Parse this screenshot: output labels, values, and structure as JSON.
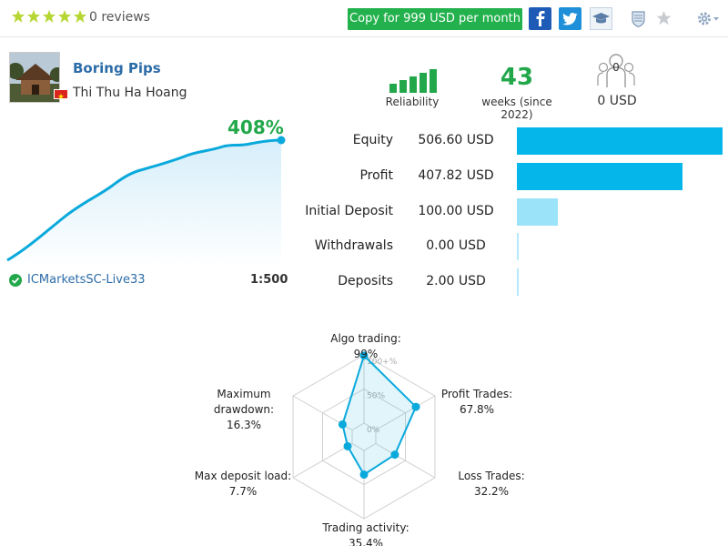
{
  "header": {
    "reviews": "0 reviews",
    "copy_label": "Copy for 999 USD per month",
    "colors": {
      "star": "#b6d633",
      "copy": "#22b14c",
      "facebook": "#1e5bb6",
      "twitter": "#1e8fd8"
    }
  },
  "profile": {
    "signal_name": "Boring Pips",
    "author": "Thi Thu Ha Hoang",
    "reliability_label": "Reliability",
    "weeks_value": "43",
    "weeks_label": "weeks (since 2022)",
    "subscribers_count": "0",
    "subscribers_usd": "0 USD"
  },
  "growth": {
    "percent": "408%",
    "server": "ICMarketsSC-Live33",
    "leverage": "1:500",
    "color": "#0aa9dc"
  },
  "stats": [
    {
      "label": "Equity",
      "value": "506.60 USD",
      "share": 1.0
    },
    {
      "label": "Profit",
      "value": "407.82 USD",
      "share": 0.805
    },
    {
      "label": "Initial Deposit",
      "value": "100.00 USD",
      "share": 0.197
    },
    {
      "label": "Withdrawals",
      "value": "0.00 USD",
      "share": 0.0
    },
    {
      "label": "Deposits",
      "value": "2.00 USD",
      "share": 0.004
    }
  ],
  "chart_data": {
    "type": "radar",
    "axes": [
      "Algo trading",
      "Profit Trades",
      "Loss Trades",
      "Trading activity",
      "Max deposit load",
      "Maximum drawdown"
    ],
    "values": [
      99,
      67.8,
      32.2,
      35.4,
      7.7,
      16.3
    ],
    "ticks": [
      "100+%",
      "50%",
      "0%"
    ],
    "labels": {
      "algo": "Algo trading: 99%",
      "profit_trades_1": "Profit Trades:",
      "profit_trades_2": "67.8%",
      "loss_trades": "Loss Trades: 32.2%",
      "activity": "Trading activity: 35.4%",
      "load_1": "Max deposit load:",
      "load_2": "7.7%",
      "drawdown_1": "Maximum",
      "drawdown_2": "drawdown: 16.3%"
    }
  }
}
